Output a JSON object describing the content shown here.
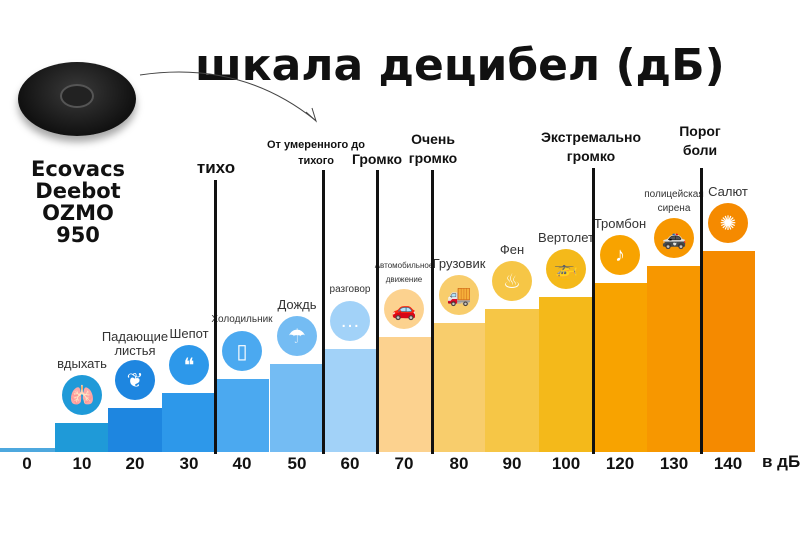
{
  "title": "шкала децибел (дБ)",
  "robot": {
    "name_lines": [
      "Ecovacs",
      "Deebot",
      "OZMO 950"
    ]
  },
  "chart_data": {
    "type": "bar",
    "title": "шкала децибел (дБ)",
    "xlabel": "в дБ",
    "categories": [
      "0",
      "10",
      "20",
      "30",
      "40",
      "50",
      "60",
      "70",
      "80",
      "90",
      "100",
      "120",
      "130",
      "140"
    ],
    "values": [
      0,
      10,
      20,
      30,
      40,
      50,
      60,
      70,
      80,
      90,
      100,
      120,
      130,
      140
    ],
    "colors": [
      "#4ea8de",
      "#1f9ad8",
      "#1e86e0",
      "#2d98ea",
      "#4ba9f0",
      "#74bcf3",
      "#a2d2f8",
      "#fcd28f",
      "#f8cd6c",
      "#f6c646",
      "#f4b91a",
      "#f8a300",
      "#f79700",
      "#f58a00"
    ],
    "examples": [
      "",
      "вдыхать",
      "Падающие листья",
      "Шепот",
      "Холодильник",
      "Дождь",
      "разговор",
      "Автомобильное движение",
      "Грузовик",
      "Фен",
      "Вертолет",
      "Тромбон",
      "полицейская сирена",
      "Салют"
    ],
    "icons": [
      "",
      "lungs-icon",
      "leaves-icon",
      "whisper-icon",
      "fridge-icon",
      "rain-icon",
      "chat-icon",
      "car-icon",
      "truck-icon",
      "hairdryer-icon",
      "helicopter-icon",
      "trombone-icon",
      "police-car-icon",
      "fireworks-icon"
    ],
    "zones": [
      "тихо",
      "От умеренного до тихого",
      "Громко",
      "Очень громко",
      "Экстремально громко",
      "Порог боли"
    ]
  }
}
